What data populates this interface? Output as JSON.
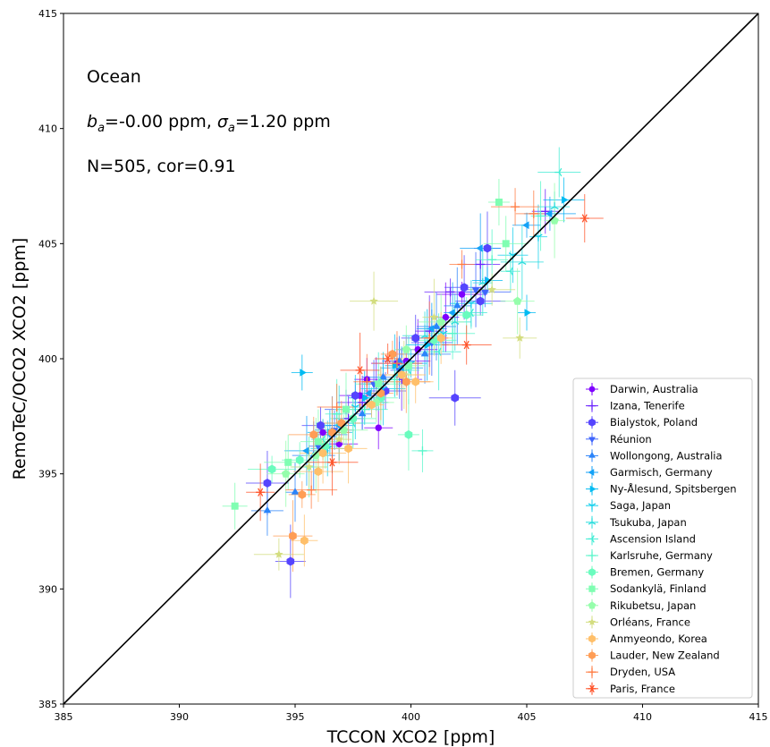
{
  "chart_data": {
    "type": "scatter",
    "title": "",
    "xlabel": "TCCON XCO2 [ppm]",
    "ylabel": "RemoTeC/OCO2 XCO2 [ppm]",
    "xlim": [
      385,
      415
    ],
    "ylim": [
      385,
      415
    ],
    "xticks": [
      "385",
      "390",
      "395",
      "400",
      "405",
      "410",
      "415"
    ],
    "yticks": [
      "385",
      "390",
      "395",
      "400",
      "405",
      "410",
      "415"
    ],
    "grid": false,
    "legend_position": "lower-right",
    "annotations": {
      "line1": "Ocean",
      "line2_b": "b",
      "line2_a": "a",
      "line2_mid": "=-0.00 ppm, ",
      "line2_sigma": "σ",
      "line2_a2": "a",
      "line2_end": "=1.20 ppm",
      "line3": "N=505, cor=0.91"
    },
    "reference_line": {
      "label": "1:1",
      "from": [
        385,
        385
      ],
      "to": [
        415,
        415
      ],
      "color": "#000000"
    },
    "series": [
      {
        "name": "Darwin, Australia",
        "color": "#7f00ff",
        "marker": "circle",
        "points": [
          [
            396.2,
            396.8
          ],
          [
            397.8,
            398.4
          ],
          [
            398.6,
            397.0
          ],
          [
            399.4,
            399.8
          ],
          [
            400.3,
            400.4
          ],
          [
            401.5,
            401.8
          ],
          [
            402.2,
            402.8
          ],
          [
            396.9,
            396.3
          ],
          [
            398.1,
            399.1
          ],
          [
            399.8,
            399.9
          ]
        ]
      },
      {
        "name": "Izana, Tenerife",
        "color": "#6a22fe",
        "marker": "plus",
        "points": [
          [
            397.3,
            397.4
          ],
          [
            398.5,
            398.9
          ],
          [
            399.6,
            399.1
          ],
          [
            400.8,
            401.2
          ],
          [
            401.7,
            402.9
          ],
          [
            403.0,
            404.1
          ],
          [
            405.8,
            406.4
          ],
          [
            397.9,
            398.1
          ]
        ]
      },
      {
        "name": "Bialystok, Poland",
        "color": "#5544fe",
        "marker": "hexagon",
        "points": [
          [
            393.8,
            394.6
          ],
          [
            394.8,
            391.2
          ],
          [
            397.6,
            398.4
          ],
          [
            398.9,
            398.6
          ],
          [
            400.2,
            400.9
          ],
          [
            401.9,
            398.3
          ],
          [
            402.3,
            403.1
          ],
          [
            403.3,
            404.8
          ],
          [
            403.0,
            402.5
          ],
          [
            396.1,
            397.1
          ]
        ]
      },
      {
        "name": "Réunion",
        "color": "#3f65fc",
        "marker": "tri-down",
        "points": [
          [
            396.0,
            396.2
          ],
          [
            397.2,
            397.8
          ],
          [
            398.4,
            398.9
          ],
          [
            399.5,
            399.5
          ],
          [
            400.9,
            400.7
          ],
          [
            402.8,
            403.0
          ],
          [
            403.2,
            402.9
          ],
          [
            396.7,
            396.9
          ]
        ]
      },
      {
        "name": "Wollongong, Australia",
        "color": "#2a84fa",
        "marker": "tri-up",
        "points": [
          [
            393.8,
            393.4
          ],
          [
            395.0,
            394.2
          ],
          [
            395.8,
            395.8
          ],
          [
            396.6,
            396.7
          ],
          [
            397.9,
            397.6
          ],
          [
            398.8,
            399.2
          ],
          [
            399.5,
            399.9
          ],
          [
            400.6,
            400.2
          ],
          [
            401.1,
            401.4
          ],
          [
            402.0,
            402.3
          ]
        ]
      },
      {
        "name": "Garmisch, Germany",
        "color": "#14a2f7",
        "marker": "tri-left",
        "points": [
          [
            395.5,
            396.0
          ],
          [
            396.9,
            397.1
          ],
          [
            398.2,
            398.5
          ],
          [
            399.6,
            399.6
          ],
          [
            400.9,
            401.3
          ],
          [
            401.8,
            402.0
          ],
          [
            403.0,
            404.8
          ],
          [
            405.0,
            405.8
          ],
          [
            406.0,
            406.3
          ]
        ]
      },
      {
        "name": "Ny-Ålesund, Spitsbergen",
        "color": "#01bbf2",
        "marker": "tri-right",
        "points": [
          [
            395.3,
            399.4
          ],
          [
            396.5,
            396.8
          ],
          [
            398.0,
            398.3
          ],
          [
            399.3,
            399.7
          ],
          [
            400.7,
            400.6
          ],
          [
            403.3,
            403.4
          ],
          [
            405.0,
            402.0
          ],
          [
            406.6,
            406.9
          ]
        ]
      },
      {
        "name": "Saga, Japan",
        "color": "#15d0ed",
        "marker": "tri-down-thin",
        "points": [
          [
            396.4,
            396.1
          ],
          [
            397.6,
            397.9
          ],
          [
            398.8,
            398.7
          ],
          [
            400.0,
            399.8
          ],
          [
            401.4,
            401.1
          ],
          [
            402.6,
            402.4
          ],
          [
            404.4,
            404.5
          ],
          [
            405.5,
            405.3
          ]
        ]
      },
      {
        "name": "Tsukuba, Japan",
        "color": "#2adddd",
        "marker": "tri-up-thin",
        "points": [
          [
            396.9,
            397.2
          ],
          [
            398.3,
            398.1
          ],
          [
            399.4,
            399.3
          ],
          [
            400.6,
            401.0
          ],
          [
            401.9,
            401.6
          ],
          [
            403.1,
            403.3
          ],
          [
            404.8,
            404.2
          ],
          [
            406.2,
            406.6
          ]
        ]
      },
      {
        "name": "Ascension Island",
        "color": "#3fecd4",
        "marker": "tri-left-thin",
        "points": [
          [
            396.2,
            396.5
          ],
          [
            397.5,
            397.2
          ],
          [
            398.6,
            399.0
          ],
          [
            399.9,
            399.5
          ],
          [
            401.2,
            400.3
          ],
          [
            402.6,
            402.0
          ],
          [
            404.3,
            403.8
          ],
          [
            406.4,
            408.1
          ]
        ]
      },
      {
        "name": "Karlsruhe, Germany",
        "color": "#55f6ca",
        "marker": "plus",
        "points": [
          [
            395.6,
            395.3
          ],
          [
            396.8,
            397.6
          ],
          [
            398.0,
            397.8
          ],
          [
            399.3,
            399.1
          ],
          [
            400.5,
            396.0
          ],
          [
            401.8,
            401.1
          ],
          [
            403.5,
            404.3
          ],
          [
            405.6,
            406.2
          ]
        ]
      },
      {
        "name": "Bremen, Germany",
        "color": "#6afcbe",
        "marker": "hexagon",
        "points": [
          [
            394.0,
            395.2
          ],
          [
            395.2,
            395.6
          ],
          [
            396.3,
            396.2
          ],
          [
            397.5,
            397.4
          ],
          [
            398.7,
            398.3
          ],
          [
            399.9,
            396.7
          ],
          [
            401.0,
            400.8
          ],
          [
            402.4,
            401.9
          ]
        ]
      },
      {
        "name": "Sodankylä, Finland",
        "color": "#7ffeb2",
        "marker": "square",
        "points": [
          [
            392.4,
            393.6
          ],
          [
            394.7,
            395.5
          ],
          [
            396.0,
            396.4
          ],
          [
            397.2,
            397.8
          ],
          [
            398.6,
            398.9
          ],
          [
            399.9,
            399.7
          ],
          [
            403.8,
            406.8
          ],
          [
            404.1,
            405.0
          ]
        ]
      },
      {
        "name": "Rikubetsu, Japan",
        "color": "#95feab",
        "marker": "pentagon",
        "points": [
          [
            394.6,
            395.0
          ],
          [
            395.9,
            395.8
          ],
          [
            397.1,
            396.9
          ],
          [
            398.5,
            398.1
          ],
          [
            399.8,
            400.4
          ],
          [
            401.3,
            401.6
          ],
          [
            404.6,
            402.5
          ],
          [
            406.2,
            406.0
          ]
        ]
      },
      {
        "name": "Orléans, France",
        "color": "#d3dd7f",
        "marker": "star",
        "points": [
          [
            394.3,
            391.5
          ],
          [
            395.6,
            395.3
          ],
          [
            396.9,
            396.5
          ],
          [
            398.4,
            402.5
          ],
          [
            399.7,
            399.3
          ],
          [
            401.0,
            401.8
          ],
          [
            403.5,
            403.0
          ],
          [
            404.7,
            400.9
          ]
        ]
      },
      {
        "name": "Anmyeondo, Korea",
        "color": "#ffbf69",
        "marker": "hexagon",
        "points": [
          [
            395.4,
            392.1
          ],
          [
            396.0,
            395.1
          ],
          [
            397.3,
            396.1
          ],
          [
            398.3,
            398.0
          ],
          [
            399.6,
            399.3
          ],
          [
            400.2,
            399.0
          ],
          [
            401.3,
            400.9
          ],
          [
            396.2,
            395.9
          ]
        ]
      },
      {
        "name": "Lauder, New Zealand",
        "color": "#ff9d55",
        "marker": "hexagon",
        "points": [
          [
            394.9,
            392.3
          ],
          [
            395.3,
            394.1
          ],
          [
            395.8,
            396.7
          ],
          [
            397.0,
            397.2
          ],
          [
            398.7,
            398.5
          ],
          [
            399.8,
            399.0
          ],
          [
            396.6,
            396.8
          ],
          [
            399.2,
            400.2
          ]
        ]
      },
      {
        "name": "Dryden, USA",
        "color": "#ff7a40",
        "marker": "plus",
        "points": [
          [
            395.7,
            394.3
          ],
          [
            396.8,
            397.9
          ],
          [
            398.1,
            399.0
          ],
          [
            399.4,
            399.8
          ],
          [
            400.8,
            400.9
          ],
          [
            402.2,
            404.1
          ],
          [
            404.5,
            406.6
          ],
          [
            405.3,
            406.3
          ]
        ]
      },
      {
        "name": "Paris, France",
        "color": "#ff5228",
        "marker": "asterisk",
        "points": [
          [
            393.5,
            394.2
          ],
          [
            396.6,
            395.5
          ],
          [
            397.8,
            399.5
          ],
          [
            399.0,
            400.0
          ],
          [
            402.4,
            400.6
          ],
          [
            407.5,
            406.1
          ]
        ]
      }
    ]
  }
}
